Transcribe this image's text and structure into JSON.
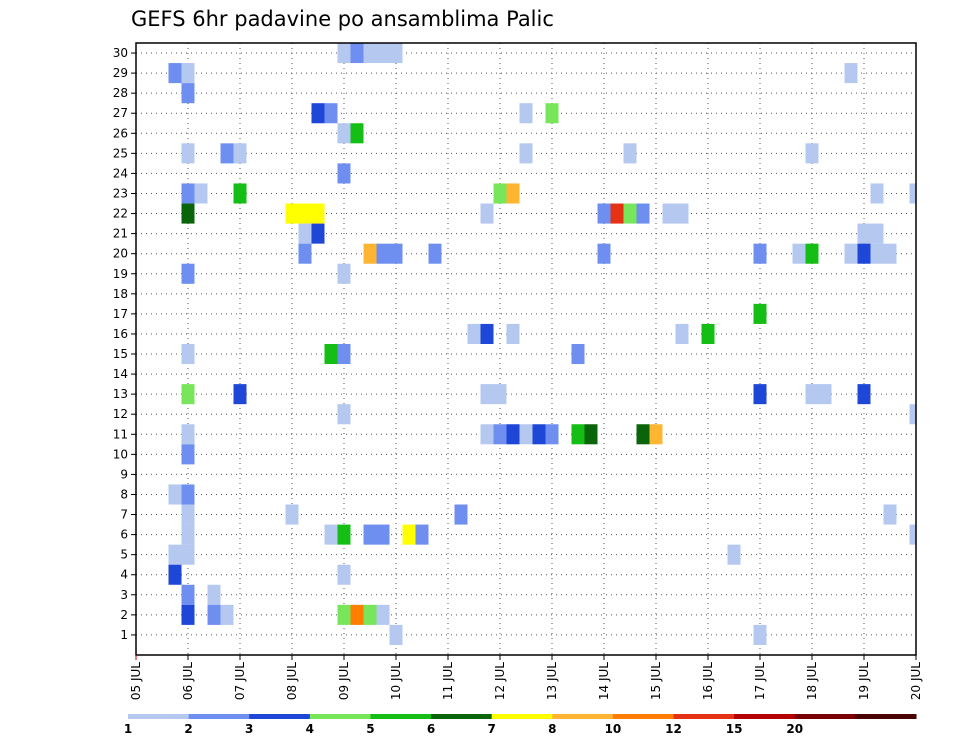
{
  "chart_data": {
    "type": "heatmap",
    "title": "GEFS 6hr padavine po ansamblima Palic",
    "xlabel": "",
    "ylabel": "",
    "x_tick_labels": [
      "05 JUL",
      "06 JUL",
      "07 JUL",
      "08 JUL",
      "09 JUL",
      "10 JUL",
      "11 JUL",
      "12 JUL",
      "13 JUL",
      "14 JUL",
      "15 JUL",
      "16 JUL",
      "17 JUL",
      "18 JUL",
      "19 JUL",
      "20 JUL"
    ],
    "y_tick_labels": [
      "1",
      "2",
      "3",
      "4",
      "5",
      "6",
      "7",
      "8",
      "9",
      "10",
      "11",
      "12",
      "13",
      "14",
      "15",
      "16",
      "17",
      "18",
      "19",
      "20",
      "21",
      "22",
      "23",
      "24",
      "25",
      "26",
      "27",
      "28",
      "29",
      "30"
    ],
    "x_range_days": [
      0,
      15
    ],
    "time_step_hours": 6,
    "y_range": [
      0,
      30
    ],
    "grid": true,
    "legend_position": "bottom",
    "color_scale": {
      "bins": [
        {
          "color": "#b4c8f0",
          "label": "1"
        },
        {
          "color": "#6e8ff0",
          "label": "2"
        },
        {
          "color": "#1e46d7",
          "label": "3"
        },
        {
          "color": "#78e65a",
          "label": "4"
        },
        {
          "color": "#14be14",
          "label": "5"
        },
        {
          "color": "#0a640a",
          "label": "6"
        },
        {
          "color": "#ffff00",
          "label": "7"
        },
        {
          "color": "#ffb432",
          "label": "8"
        },
        {
          "color": "#ff7d00",
          "label": "10"
        },
        {
          "color": "#e63214",
          "label": "12"
        },
        {
          "color": "#b40000",
          "label": "15"
        },
        {
          "color": "#780000",
          "label": "20"
        },
        {
          "color": "#4b0000",
          "label": ""
        }
      ]
    },
    "cells": [
      {
        "member": 30,
        "day": "09 JUL",
        "hour": 0,
        "bin": 0
      },
      {
        "member": 30,
        "day": "09 JUL",
        "hour": 6,
        "bin": 1
      },
      {
        "member": 30,
        "day": "09 JUL",
        "hour": 12,
        "bin": 0
      },
      {
        "member": 30,
        "day": "09 JUL",
        "hour": 18,
        "bin": 0
      },
      {
        "member": 30,
        "day": "10 JUL",
        "hour": 0,
        "bin": 0
      },
      {
        "member": 29,
        "day": "05 JUL",
        "hour": 18,
        "bin": 1
      },
      {
        "member": 29,
        "day": "06 JUL",
        "hour": 0,
        "bin": 0
      },
      {
        "member": 29,
        "day": "18 JUL",
        "hour": 18,
        "bin": 0
      },
      {
        "member": 28,
        "day": "06 JUL",
        "hour": 0,
        "bin": 1
      },
      {
        "member": 27,
        "day": "08 JUL",
        "hour": 12,
        "bin": 2
      },
      {
        "member": 27,
        "day": "08 JUL",
        "hour": 18,
        "bin": 1
      },
      {
        "member": 27,
        "day": "12 JUL",
        "hour": 12,
        "bin": 0
      },
      {
        "member": 27,
        "day": "13 JUL",
        "hour": 0,
        "bin": 3
      },
      {
        "member": 26,
        "day": "09 JUL",
        "hour": 0,
        "bin": 0
      },
      {
        "member": 26,
        "day": "09 JUL",
        "hour": 6,
        "bin": 4
      },
      {
        "member": 25,
        "day": "06 JUL",
        "hour": 0,
        "bin": 0
      },
      {
        "member": 25,
        "day": "06 JUL",
        "hour": 18,
        "bin": 1
      },
      {
        "member": 25,
        "day": "07 JUL",
        "hour": 0,
        "bin": 0
      },
      {
        "member": 25,
        "day": "12 JUL",
        "hour": 12,
        "bin": 0
      },
      {
        "member": 25,
        "day": "14 JUL",
        "hour": 12,
        "bin": 0
      },
      {
        "member": 25,
        "day": "18 JUL",
        "hour": 0,
        "bin": 0
      },
      {
        "member": 24,
        "day": "09 JUL",
        "hour": 0,
        "bin": 1
      },
      {
        "member": 23,
        "day": "06 JUL",
        "hour": 0,
        "bin": 1
      },
      {
        "member": 23,
        "day": "06 JUL",
        "hour": 6,
        "bin": 0
      },
      {
        "member": 23,
        "day": "07 JUL",
        "hour": 0,
        "bin": 4
      },
      {
        "member": 23,
        "day": "12 JUL",
        "hour": 0,
        "bin": 3
      },
      {
        "member": 23,
        "day": "12 JUL",
        "hour": 6,
        "bin": 7
      },
      {
        "member": 23,
        "day": "19 JUL",
        "hour": 6,
        "bin": 0
      },
      {
        "member": 23,
        "day": "20 JUL",
        "hour": 0,
        "bin": 0
      },
      {
        "member": 22,
        "day": "06 JUL",
        "hour": 0,
        "bin": 5
      },
      {
        "member": 22,
        "day": "08 JUL",
        "hour": 0,
        "bin": 6
      },
      {
        "member": 22,
        "day": "08 JUL",
        "hour": 6,
        "bin": 6
      },
      {
        "member": 22,
        "day": "08 JUL",
        "hour": 12,
        "bin": 6
      },
      {
        "member": 22,
        "day": "11 JUL",
        "hour": 18,
        "bin": 0
      },
      {
        "member": 22,
        "day": "14 JUL",
        "hour": 0,
        "bin": 1
      },
      {
        "member": 22,
        "day": "14 JUL",
        "hour": 6,
        "bin": 9
      },
      {
        "member": 22,
        "day": "14 JUL",
        "hour": 12,
        "bin": 3
      },
      {
        "member": 22,
        "day": "14 JUL",
        "hour": 18,
        "bin": 1
      },
      {
        "member": 22,
        "day": "15 JUL",
        "hour": 6,
        "bin": 0
      },
      {
        "member": 22,
        "day": "15 JUL",
        "hour": 12,
        "bin": 0
      },
      {
        "member": 21,
        "day": "08 JUL",
        "hour": 6,
        "bin": 0
      },
      {
        "member": 21,
        "day": "08 JUL",
        "hour": 12,
        "bin": 2
      },
      {
        "member": 21,
        "day": "19 JUL",
        "hour": 0,
        "bin": 0
      },
      {
        "member": 21,
        "day": "19 JUL",
        "hour": 6,
        "bin": 0
      },
      {
        "member": 20,
        "day": "08 JUL",
        "hour": 6,
        "bin": 1
      },
      {
        "member": 20,
        "day": "09 JUL",
        "hour": 12,
        "bin": 7
      },
      {
        "member": 20,
        "day": "09 JUL",
        "hour": 18,
        "bin": 1
      },
      {
        "member": 20,
        "day": "10 JUL",
        "hour": 0,
        "bin": 1
      },
      {
        "member": 20,
        "day": "10 JUL",
        "hour": 18,
        "bin": 1
      },
      {
        "member": 20,
        "day": "14 JUL",
        "hour": 0,
        "bin": 1
      },
      {
        "member": 20,
        "day": "17 JUL",
        "hour": 0,
        "bin": 1
      },
      {
        "member": 20,
        "day": "17 JUL",
        "hour": 18,
        "bin": 0
      },
      {
        "member": 20,
        "day": "18 JUL",
        "hour": 0,
        "bin": 4
      },
      {
        "member": 20,
        "day": "18 JUL",
        "hour": 18,
        "bin": 0
      },
      {
        "member": 20,
        "day": "19 JUL",
        "hour": 0,
        "bin": 2
      },
      {
        "member": 20,
        "day": "19 JUL",
        "hour": 6,
        "bin": 0
      },
      {
        "member": 20,
        "day": "19 JUL",
        "hour": 12,
        "bin": 0
      },
      {
        "member": 19,
        "day": "06 JUL",
        "hour": 0,
        "bin": 1
      },
      {
        "member": 19,
        "day": "09 JUL",
        "hour": 0,
        "bin": 0
      },
      {
        "member": 17,
        "day": "17 JUL",
        "hour": 0,
        "bin": 4
      },
      {
        "member": 16,
        "day": "11 JUL",
        "hour": 12,
        "bin": 0
      },
      {
        "member": 16,
        "day": "11 JUL",
        "hour": 18,
        "bin": 2
      },
      {
        "member": 16,
        "day": "12 JUL",
        "hour": 6,
        "bin": 0
      },
      {
        "member": 16,
        "day": "15 JUL",
        "hour": 12,
        "bin": 0
      },
      {
        "member": 16,
        "day": "16 JUL",
        "hour": 0,
        "bin": 4
      },
      {
        "member": 15,
        "day": "06 JUL",
        "hour": 0,
        "bin": 0
      },
      {
        "member": 15,
        "day": "08 JUL",
        "hour": 18,
        "bin": 4
      },
      {
        "member": 15,
        "day": "09 JUL",
        "hour": 0,
        "bin": 1
      },
      {
        "member": 15,
        "day": "13 JUL",
        "hour": 12,
        "bin": 1
      },
      {
        "member": 13,
        "day": "06 JUL",
        "hour": 0,
        "bin": 3
      },
      {
        "member": 13,
        "day": "07 JUL",
        "hour": 0,
        "bin": 2
      },
      {
        "member": 13,
        "day": "11 JUL",
        "hour": 18,
        "bin": 0
      },
      {
        "member": 13,
        "day": "12 JUL",
        "hour": 0,
        "bin": 0
      },
      {
        "member": 13,
        "day": "17 JUL",
        "hour": 0,
        "bin": 2
      },
      {
        "member": 13,
        "day": "18 JUL",
        "hour": 0,
        "bin": 0
      },
      {
        "member": 13,
        "day": "18 JUL",
        "hour": 6,
        "bin": 0
      },
      {
        "member": 13,
        "day": "19 JUL",
        "hour": 0,
        "bin": 2
      },
      {
        "member": 12,
        "day": "09 JUL",
        "hour": 0,
        "bin": 0
      },
      {
        "member": 12,
        "day": "20 JUL",
        "hour": 0,
        "bin": 0
      },
      {
        "member": 11,
        "day": "06 JUL",
        "hour": 0,
        "bin": 0
      },
      {
        "member": 11,
        "day": "11 JUL",
        "hour": 18,
        "bin": 0
      },
      {
        "member": 11,
        "day": "12 JUL",
        "hour": 0,
        "bin": 1
      },
      {
        "member": 11,
        "day": "12 JUL",
        "hour": 6,
        "bin": 2
      },
      {
        "member": 11,
        "day": "12 JUL",
        "hour": 12,
        "bin": 0
      },
      {
        "member": 11,
        "day": "12 JUL",
        "hour": 18,
        "bin": 2
      },
      {
        "member": 11,
        "day": "13 JUL",
        "hour": 0,
        "bin": 1
      },
      {
        "member": 11,
        "day": "13 JUL",
        "hour": 12,
        "bin": 4
      },
      {
        "member": 11,
        "day": "13 JUL",
        "hour": 18,
        "bin": 5
      },
      {
        "member": 11,
        "day": "14 JUL",
        "hour": 18,
        "bin": 5
      },
      {
        "member": 11,
        "day": "15 JUL",
        "hour": 0,
        "bin": 7
      },
      {
        "member": 10,
        "day": "06 JUL",
        "hour": 0,
        "bin": 1
      },
      {
        "member": 8,
        "day": "05 JUL",
        "hour": 18,
        "bin": 0
      },
      {
        "member": 8,
        "day": "06 JUL",
        "hour": 0,
        "bin": 1
      },
      {
        "member": 7,
        "day": "06 JUL",
        "hour": 0,
        "bin": 0
      },
      {
        "member": 7,
        "day": "08 JUL",
        "hour": 0,
        "bin": 0
      },
      {
        "member": 7,
        "day": "11 JUL",
        "hour": 6,
        "bin": 1
      },
      {
        "member": 7,
        "day": "19 JUL",
        "hour": 12,
        "bin": 0
      },
      {
        "member": 6,
        "day": "06 JUL",
        "hour": 0,
        "bin": 0
      },
      {
        "member": 6,
        "day": "08 JUL",
        "hour": 18,
        "bin": 0
      },
      {
        "member": 6,
        "day": "09 JUL",
        "hour": 0,
        "bin": 4
      },
      {
        "member": 6,
        "day": "09 JUL",
        "hour": 12,
        "bin": 1
      },
      {
        "member": 6,
        "day": "09 JUL",
        "hour": 18,
        "bin": 1
      },
      {
        "member": 6,
        "day": "10 JUL",
        "hour": 6,
        "bin": 6
      },
      {
        "member": 6,
        "day": "10 JUL",
        "hour": 12,
        "bin": 1
      },
      {
        "member": 6,
        "day": "20 JUL",
        "hour": 0,
        "bin": 0
      },
      {
        "member": 5,
        "day": "05 JUL",
        "hour": 18,
        "bin": 0
      },
      {
        "member": 5,
        "day": "06 JUL",
        "hour": 0,
        "bin": 0
      },
      {
        "member": 5,
        "day": "16 JUL",
        "hour": 12,
        "bin": 0
      },
      {
        "member": 4,
        "day": "05 JUL",
        "hour": 18,
        "bin": 2
      },
      {
        "member": 4,
        "day": "09 JUL",
        "hour": 0,
        "bin": 0
      },
      {
        "member": 3,
        "day": "06 JUL",
        "hour": 0,
        "bin": 1
      },
      {
        "member": 3,
        "day": "06 JUL",
        "hour": 12,
        "bin": 0
      },
      {
        "member": 2,
        "day": "06 JUL",
        "hour": 0,
        "bin": 2
      },
      {
        "member": 2,
        "day": "06 JUL",
        "hour": 12,
        "bin": 1
      },
      {
        "member": 2,
        "day": "06 JUL",
        "hour": 18,
        "bin": 0
      },
      {
        "member": 2,
        "day": "09 JUL",
        "hour": 0,
        "bin": 3
      },
      {
        "member": 2,
        "day": "09 JUL",
        "hour": 6,
        "bin": 8
      },
      {
        "member": 2,
        "day": "09 JUL",
        "hour": 12,
        "bin": 3
      },
      {
        "member": 2,
        "day": "09 JUL",
        "hour": 18,
        "bin": 0
      },
      {
        "member": 1,
        "day": "10 JUL",
        "hour": 0,
        "bin": 0
      },
      {
        "member": 1,
        "day": "17 JUL",
        "hour": 0,
        "bin": 0
      }
    ]
  }
}
